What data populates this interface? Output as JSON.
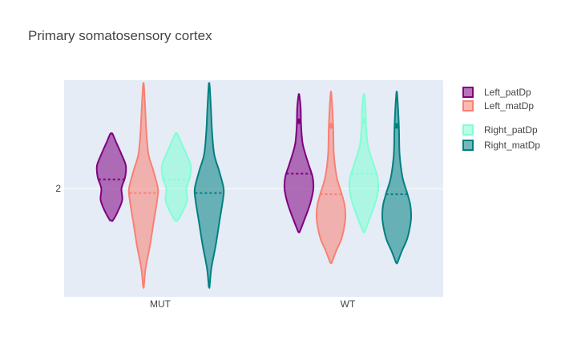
{
  "chart_data": {
    "type": "violin",
    "title": "Primary somatosensory cortex",
    "xlabel": "",
    "ylabel": "",
    "categories": [
      "MUT",
      "WT"
    ],
    "y_tick_labels": [
      "2"
    ],
    "y_ticks": [
      2
    ],
    "ylim": [
      1.05,
      2.95
    ],
    "grid": true,
    "legend_position": "right",
    "series": [
      {
        "name": "Left_patDp",
        "color": "#800080",
        "fill": "rgba(128,0,128,0.55)",
        "dash_median": true,
        "groups": {
          "MUT": {
            "min": 1.72,
            "max": 2.48,
            "median": 2.08,
            "shape": [
              [
                1.72,
                0.1
              ],
              [
                1.8,
                0.45
              ],
              [
                1.9,
                0.75
              ],
              [
                2.0,
                0.7
              ],
              [
                2.1,
                0.95
              ],
              [
                2.2,
                1.0
              ],
              [
                2.3,
                0.7
              ],
              [
                2.4,
                0.35
              ],
              [
                2.48,
                0.08
              ]
            ]
          },
          "WT": {
            "min": 1.62,
            "max": 2.82,
            "median": 2.13,
            "outliers": [
              2.59
            ],
            "shape": [
              [
                1.62,
                0.05
              ],
              [
                1.7,
                0.3
              ],
              [
                1.8,
                0.6
              ],
              [
                1.9,
                0.85
              ],
              [
                2.0,
                1.0
              ],
              [
                2.1,
                0.95
              ],
              [
                2.2,
                0.7
              ],
              [
                2.3,
                0.45
              ],
              [
                2.4,
                0.25
              ],
              [
                2.55,
                0.15
              ],
              [
                2.7,
                0.12
              ],
              [
                2.82,
                0.03
              ]
            ]
          }
        }
      },
      {
        "name": "Left_matDp",
        "color": "#fa8072",
        "fill": "rgba(250,128,114,0.55)",
        "dash_median": true,
        "groups": {
          "MUT": {
            "min": 1.14,
            "max": 2.91,
            "median": 1.96,
            "shape": [
              [
                1.14,
                0.03
              ],
              [
                1.3,
                0.15
              ],
              [
                1.5,
                0.45
              ],
              [
                1.7,
                0.7
              ],
              [
                1.9,
                0.95
              ],
              [
                2.0,
                1.0
              ],
              [
                2.15,
                0.7
              ],
              [
                2.3,
                0.35
              ],
              [
                2.5,
                0.2
              ],
              [
                2.7,
                0.12
              ],
              [
                2.91,
                0.03
              ]
            ]
          },
          "WT": {
            "min": 1.35,
            "max": 2.83,
            "median": 1.95,
            "outliers": [
              2.55
            ],
            "shape": [
              [
                1.35,
                0.05
              ],
              [
                1.45,
                0.35
              ],
              [
                1.55,
                0.7
              ],
              [
                1.65,
                0.9
              ],
              [
                1.75,
                1.0
              ],
              [
                1.85,
                0.95
              ],
              [
                1.95,
                0.75
              ],
              [
                2.1,
                0.4
              ],
              [
                2.3,
                0.2
              ],
              [
                2.55,
                0.15
              ],
              [
                2.83,
                0.03
              ]
            ]
          }
        }
      },
      {
        "name": "Right_patDp",
        "color": "#7fffd4",
        "fill": "rgba(127,255,212,0.55)",
        "dash_median": true,
        "groups": {
          "MUT": {
            "min": 1.72,
            "max": 2.48,
            "median": 2.08,
            "shape": [
              [
                1.72,
                0.1
              ],
              [
                1.8,
                0.45
              ],
              [
                1.9,
                0.75
              ],
              [
                2.0,
                0.7
              ],
              [
                2.1,
                0.95
              ],
              [
                2.2,
                1.0
              ],
              [
                2.3,
                0.7
              ],
              [
                2.4,
                0.35
              ],
              [
                2.48,
                0.08
              ]
            ]
          },
          "WT": {
            "min": 1.62,
            "max": 2.82,
            "median": 2.13,
            "outliers": [
              2.59
            ],
            "shape": [
              [
                1.62,
                0.05
              ],
              [
                1.7,
                0.3
              ],
              [
                1.8,
                0.6
              ],
              [
                1.9,
                0.85
              ],
              [
                2.0,
                1.0
              ],
              [
                2.1,
                0.95
              ],
              [
                2.2,
                0.7
              ],
              [
                2.3,
                0.45
              ],
              [
                2.4,
                0.25
              ],
              [
                2.55,
                0.15
              ],
              [
                2.7,
                0.12
              ],
              [
                2.82,
                0.03
              ]
            ]
          }
        }
      },
      {
        "name": "Right_matDp",
        "color": "#008080",
        "fill": "rgba(0,128,128,0.55)",
        "dash_median": true,
        "groups": {
          "MUT": {
            "min": 1.14,
            "max": 2.91,
            "median": 1.96,
            "shape": [
              [
                1.14,
                0.03
              ],
              [
                1.3,
                0.15
              ],
              [
                1.5,
                0.45
              ],
              [
                1.7,
                0.7
              ],
              [
                1.9,
                0.95
              ],
              [
                2.0,
                1.0
              ],
              [
                2.15,
                0.7
              ],
              [
                2.3,
                0.35
              ],
              [
                2.5,
                0.2
              ],
              [
                2.7,
                0.12
              ],
              [
                2.91,
                0.03
              ]
            ]
          },
          "WT": {
            "min": 1.35,
            "max": 2.83,
            "median": 1.95,
            "outliers": [
              2.55
            ],
            "shape": [
              [
                1.35,
                0.05
              ],
              [
                1.45,
                0.35
              ],
              [
                1.55,
                0.7
              ],
              [
                1.65,
                0.9
              ],
              [
                1.75,
                1.0
              ],
              [
                1.85,
                0.95
              ],
              [
                1.95,
                0.75
              ],
              [
                2.1,
                0.4
              ],
              [
                2.3,
                0.2
              ],
              [
                2.55,
                0.15
              ],
              [
                2.83,
                0.03
              ]
            ]
          }
        }
      }
    ]
  }
}
